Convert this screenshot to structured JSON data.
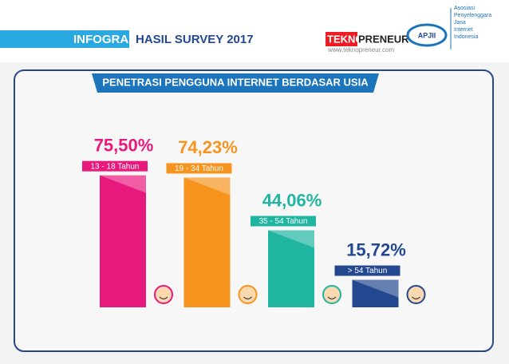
{
  "header": {
    "tag": "INFOGRAFIS",
    "subtitle": "HASIL SURVEY 2017",
    "brand_a": "TEKNO",
    "brand_b": "PRENEUR",
    "url": "www.teknopreneur.com",
    "org": "APJII",
    "org_lines": [
      "Asosiasi",
      "Penyelenggara",
      "Jasa",
      "Internet",
      "Indonesia"
    ]
  },
  "chart_data": {
    "type": "bar",
    "title": "PENETRASI PENGGUNA INTERNET BERDASAR USIA",
    "categories": [
      "13 - 18 Tahun",
      "19 - 34 Tahun",
      "35 - 54 Tahun",
      "> 54 Tahun"
    ],
    "values": [
      75.5,
      74.23,
      44.06,
      15.72
    ],
    "value_labels": [
      "75,50%",
      "74,23%",
      "44,06%",
      "15,72%"
    ],
    "colors": [
      "#e8197d",
      "#f7941d",
      "#1fb5a1",
      "#23488f"
    ]
  }
}
